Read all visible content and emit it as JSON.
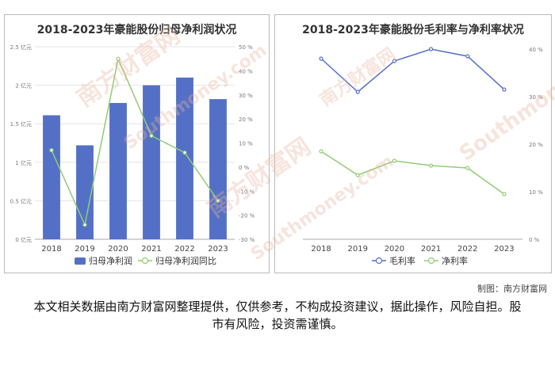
{
  "credit": "制图：南方财富网",
  "disclaimer": "本文相关数据由南方财富网整理提供，仅供参考，不构成投资建议，据此操作，风险自担。股市有风险，投资需谨慎。",
  "watermark": {
    "cn": "南方财富网",
    "en": "Southmoney.com"
  },
  "colors": {
    "bar": "#5470c6",
    "green": "#91cc75",
    "blue_line": "#5470c6"
  },
  "chart_data": [
    {
      "type": "bar",
      "title": "2018-2023年豪能股份归母净利润状况",
      "categories": [
        "2018",
        "2019",
        "2020",
        "2021",
        "2022",
        "2023"
      ],
      "series": [
        {
          "name": "归母净利润",
          "type": "bar",
          "axis": "left",
          "values": [
            1.61,
            1.22,
            1.77,
            2.0,
            2.1,
            1.82
          ]
        },
        {
          "name": "归母净利润同比",
          "type": "line",
          "axis": "right",
          "values": [
            7,
            -24,
            45,
            13,
            6,
            -14
          ]
        }
      ],
      "y_left": {
        "ticks": [
          0,
          0.5,
          1,
          1.5,
          2,
          2.5
        ],
        "tick_labels": [
          "0 亿元",
          "0.5 亿元",
          "1 亿元",
          "1.5 亿元",
          "2 亿元",
          "2.5 亿元"
        ],
        "ylim": [
          0,
          2.5
        ]
      },
      "y_right": {
        "ticks": [
          -30,
          -20,
          -10,
          0,
          10,
          20,
          30,
          40,
          50
        ],
        "tick_labels": [
          "-30 %",
          "-20 %",
          "-10 %",
          "0 %",
          "10 %",
          "20 %",
          "30 %",
          "40 %",
          "50 %"
        ],
        "ylim": [
          -30,
          50
        ]
      },
      "legend_position": "bottom",
      "grid": true
    },
    {
      "type": "line",
      "title": "2018-2023年豪能股份毛利率与净利率状况",
      "categories": [
        "2018",
        "2019",
        "2020",
        "2021",
        "2022",
        "2023"
      ],
      "series": [
        {
          "name": "毛利率",
          "values": [
            38,
            31,
            37.5,
            40,
            38.5,
            31.5
          ]
        },
        {
          "name": "净利率",
          "values": [
            18.5,
            13.5,
            16.5,
            15.5,
            15,
            9.5
          ]
        }
      ],
      "y_right": {
        "ticks": [
          0,
          10,
          20,
          30,
          40
        ],
        "tick_labels": [
          "0 %",
          "10 %",
          "20 %",
          "30 %",
          "40 %"
        ],
        "ylim": [
          0,
          40
        ]
      },
      "legend_position": "bottom",
      "grid": false
    }
  ]
}
